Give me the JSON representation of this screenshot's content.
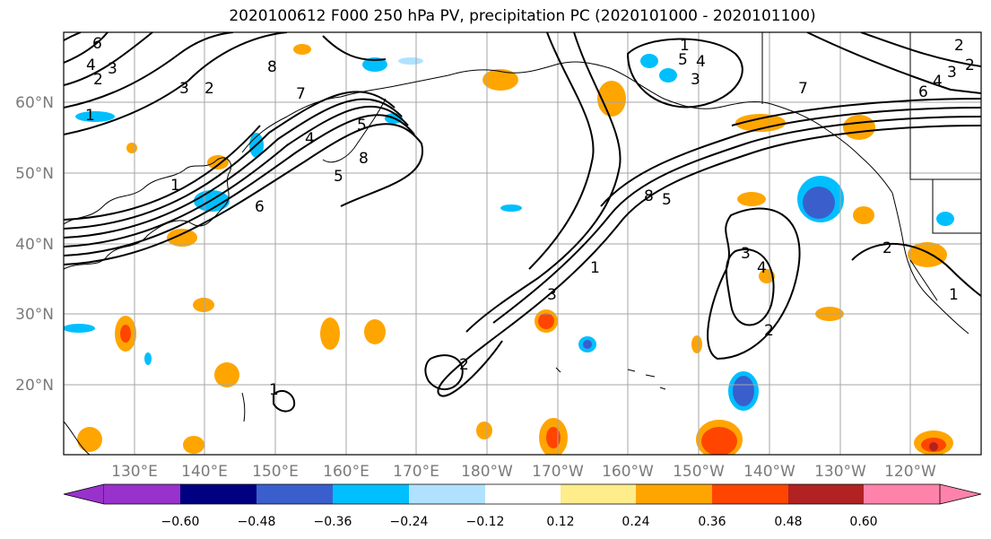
{
  "title": "2020100612 F000 250 hPa PV, precipitation PC (2020101000 - 2020101100)",
  "map": {
    "lon_labels": [
      "130°E",
      "140°E",
      "150°E",
      "160°E",
      "170°E",
      "180°W",
      "170°W",
      "160°W",
      "150°W",
      "140°W",
      "130°W",
      "120°W"
    ],
    "lat_labels": [
      "60°N",
      "50°N",
      "40°N",
      "30°N",
      "20°N"
    ],
    "pv_contour_labels": [
      "6",
      "4",
      "3",
      "2",
      "1",
      "3",
      "2",
      "8",
      "7",
      "4",
      "5",
      "8",
      "5",
      "6",
      "1",
      "1",
      "8",
      "5",
      "4",
      "3",
      "7",
      "6",
      "4",
      "3",
      "2",
      "5",
      "1",
      "2",
      "3",
      "4",
      "2",
      "1",
      "2",
      "1",
      "3",
      "2"
    ]
  },
  "colorbar": {
    "tick_labels": [
      "−0.60",
      "−0.48",
      "−0.36",
      "−0.24",
      "−0.12",
      "0.12",
      "0.24",
      "0.36",
      "0.48",
      "0.60"
    ],
    "colors": [
      "#9932cc",
      "#000080",
      "#3a5fcd",
      "#00bfff",
      "#b0e2ff",
      "#ffffff",
      "#ffec8b",
      "#ffa500",
      "#ff4500",
      "#b22222",
      "#ff82ab"
    ]
  }
}
